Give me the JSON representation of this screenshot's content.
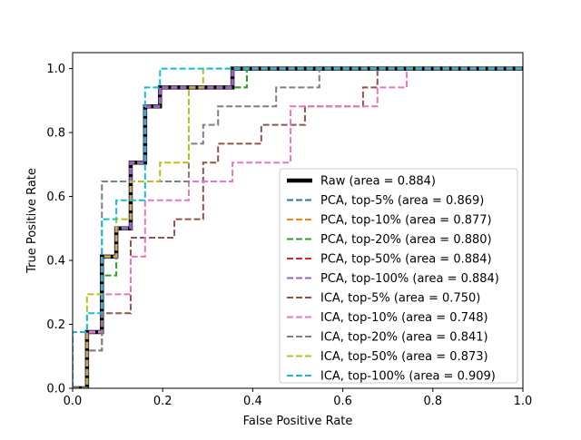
{
  "chart_data": {
    "type": "line",
    "title": "",
    "xlabel": "False Positive Rate",
    "ylabel": "True Positive Rate",
    "xlim": [
      0.0,
      1.0
    ],
    "ylim": [
      0.0,
      1.05
    ],
    "xticks": [
      0.0,
      0.2,
      0.4,
      0.6,
      0.8,
      1.0
    ],
    "xtick_labels": [
      "0.0",
      "0.2",
      "0.4",
      "0.6",
      "0.8",
      "1.0"
    ],
    "yticks": [
      0.0,
      0.2,
      0.4,
      0.6,
      0.8,
      1.0
    ],
    "ytick_labels": [
      "0.0",
      "0.2",
      "0.4",
      "0.6",
      "0.8",
      "1.0"
    ],
    "grid": false,
    "legend_position": "lower-right",
    "series": [
      {
        "name": "Raw (area = 0.884)",
        "color": "#000000",
        "dash": "solid",
        "linewidth": "thick",
        "points": [
          [
            0,
            0
          ],
          [
            0.032,
            0
          ],
          [
            0.032,
            0.176
          ],
          [
            0.065,
            0.176
          ],
          [
            0.065,
            0.412
          ],
          [
            0.097,
            0.412
          ],
          [
            0.097,
            0.5
          ],
          [
            0.129,
            0.5
          ],
          [
            0.129,
            0.706
          ],
          [
            0.161,
            0.706
          ],
          [
            0.161,
            0.882
          ],
          [
            0.194,
            0.882
          ],
          [
            0.194,
            0.941
          ],
          [
            0.355,
            0.941
          ],
          [
            0.355,
            1.0
          ],
          [
            1.0,
            1.0
          ]
        ]
      },
      {
        "name": "PCA, top-5% (area = 0.869)",
        "color": "#1f77b4",
        "dash": "dashed",
        "points": [
          [
            0,
            0
          ],
          [
            0.032,
            0
          ],
          [
            0.032,
            0.176
          ],
          [
            0.065,
            0.176
          ],
          [
            0.065,
            0.412
          ],
          [
            0.097,
            0.412
          ],
          [
            0.097,
            0.5
          ],
          [
            0.129,
            0.5
          ],
          [
            0.129,
            0.706
          ],
          [
            0.161,
            0.706
          ],
          [
            0.161,
            0.882
          ],
          [
            0.194,
            0.882
          ],
          [
            0.194,
            0.941
          ],
          [
            0.387,
            0.941
          ],
          [
            0.387,
            1.0
          ],
          [
            1.0,
            1.0
          ]
        ]
      },
      {
        "name": "PCA, top-10% (area = 0.877)",
        "color": "#ff7f0e",
        "dash": "dashed",
        "points": [
          [
            0,
            0
          ],
          [
            0.032,
            0
          ],
          [
            0.032,
            0.176
          ],
          [
            0.065,
            0.176
          ],
          [
            0.065,
            0.412
          ],
          [
            0.097,
            0.412
          ],
          [
            0.097,
            0.5
          ],
          [
            0.129,
            0.5
          ],
          [
            0.129,
            0.706
          ],
          [
            0.161,
            0.706
          ],
          [
            0.161,
            0.882
          ],
          [
            0.194,
            0.882
          ],
          [
            0.194,
            0.941
          ],
          [
            0.387,
            0.941
          ],
          [
            0.387,
            1.0
          ],
          [
            1.0,
            1.0
          ]
        ]
      },
      {
        "name": "PCA, top-20% (area = 0.880)",
        "color": "#2ca02c",
        "dash": "dashed",
        "points": [
          [
            0,
            0
          ],
          [
            0.032,
            0
          ],
          [
            0.032,
            0.176
          ],
          [
            0.065,
            0.176
          ],
          [
            0.065,
            0.353
          ],
          [
            0.097,
            0.353
          ],
          [
            0.097,
            0.5
          ],
          [
            0.129,
            0.5
          ],
          [
            0.129,
            0.706
          ],
          [
            0.161,
            0.706
          ],
          [
            0.161,
            0.882
          ],
          [
            0.194,
            0.882
          ],
          [
            0.194,
            0.941
          ],
          [
            0.387,
            0.941
          ],
          [
            0.387,
            1.0
          ],
          [
            1.0,
            1.0
          ]
        ]
      },
      {
        "name": "PCA, top-50% (area = 0.884)",
        "color": "#d62728",
        "dash": "dashed",
        "points": [
          [
            0,
            0
          ],
          [
            0.032,
            0
          ],
          [
            0.032,
            0.176
          ],
          [
            0.065,
            0.176
          ],
          [
            0.065,
            0.412
          ],
          [
            0.097,
            0.412
          ],
          [
            0.097,
            0.5
          ],
          [
            0.129,
            0.5
          ],
          [
            0.129,
            0.706
          ],
          [
            0.161,
            0.706
          ],
          [
            0.161,
            0.882
          ],
          [
            0.194,
            0.882
          ],
          [
            0.194,
            0.941
          ],
          [
            0.355,
            0.941
          ],
          [
            0.355,
            1.0
          ],
          [
            1.0,
            1.0
          ]
        ]
      },
      {
        "name": "PCA, top-100% (area = 0.884)",
        "color": "#9467bd",
        "dash": "dashed",
        "linewidth": "wide",
        "points": [
          [
            0,
            0
          ],
          [
            0.032,
            0
          ],
          [
            0.032,
            0.176
          ],
          [
            0.065,
            0.176
          ],
          [
            0.065,
            0.412
          ],
          [
            0.097,
            0.412
          ],
          [
            0.097,
            0.5
          ],
          [
            0.129,
            0.5
          ],
          [
            0.129,
            0.706
          ],
          [
            0.161,
            0.706
          ],
          [
            0.161,
            0.882
          ],
          [
            0.194,
            0.882
          ],
          [
            0.194,
            0.941
          ],
          [
            0.355,
            0.941
          ],
          [
            0.355,
            1.0
          ],
          [
            1.0,
            1.0
          ]
        ]
      },
      {
        "name": "ICA, top-5% (area = 0.750)",
        "color": "#8c564b",
        "dash": "dashed",
        "points": [
          [
            0,
            0
          ],
          [
            0.032,
            0
          ],
          [
            0.032,
            0.118
          ],
          [
            0.065,
            0.118
          ],
          [
            0.065,
            0.235
          ],
          [
            0.129,
            0.235
          ],
          [
            0.129,
            0.471
          ],
          [
            0.226,
            0.471
          ],
          [
            0.226,
            0.529
          ],
          [
            0.29,
            0.529
          ],
          [
            0.29,
            0.706
          ],
          [
            0.323,
            0.706
          ],
          [
            0.323,
            0.765
          ],
          [
            0.419,
            0.765
          ],
          [
            0.419,
            0.824
          ],
          [
            0.516,
            0.824
          ],
          [
            0.516,
            0.882
          ],
          [
            0.645,
            0.882
          ],
          [
            0.645,
            0.941
          ],
          [
            0.677,
            0.941
          ],
          [
            0.677,
            1.0
          ],
          [
            1.0,
            1.0
          ]
        ]
      },
      {
        "name": "ICA, top-10% (area = 0.748)",
        "color": "#e377c2",
        "dash": "dashed",
        "points": [
          [
            0,
            0
          ],
          [
            0.032,
            0
          ],
          [
            0.032,
            0.176
          ],
          [
            0.065,
            0.176
          ],
          [
            0.065,
            0.294
          ],
          [
            0.129,
            0.294
          ],
          [
            0.129,
            0.412
          ],
          [
            0.161,
            0.412
          ],
          [
            0.161,
            0.588
          ],
          [
            0.258,
            0.588
          ],
          [
            0.258,
            0.647
          ],
          [
            0.355,
            0.647
          ],
          [
            0.355,
            0.706
          ],
          [
            0.484,
            0.706
          ],
          [
            0.484,
            0.882
          ],
          [
            0.677,
            0.882
          ],
          [
            0.677,
            0.941
          ],
          [
            0.742,
            0.941
          ],
          [
            0.742,
            1.0
          ],
          [
            1.0,
            1.0
          ]
        ]
      },
      {
        "name": "ICA, top-20% (area = 0.841)",
        "color": "#7f7f7f",
        "dash": "dashed",
        "points": [
          [
            0,
            0
          ],
          [
            0.032,
            0
          ],
          [
            0.032,
            0.118
          ],
          [
            0.065,
            0.118
          ],
          [
            0.065,
            0.647
          ],
          [
            0.258,
            0.647
          ],
          [
            0.258,
            0.765
          ],
          [
            0.29,
            0.765
          ],
          [
            0.29,
            0.824
          ],
          [
            0.323,
            0.824
          ],
          [
            0.323,
            0.882
          ],
          [
            0.452,
            0.882
          ],
          [
            0.452,
            0.941
          ],
          [
            0.548,
            0.941
          ],
          [
            0.548,
            1.0
          ],
          [
            1.0,
            1.0
          ]
        ]
      },
      {
        "name": "ICA, top-50% (area = 0.873)",
        "color": "#bcbd22",
        "dash": "dashed",
        "points": [
          [
            0,
            0
          ],
          [
            0.032,
            0
          ],
          [
            0.032,
            0.294
          ],
          [
            0.065,
            0.294
          ],
          [
            0.065,
            0.412
          ],
          [
            0.097,
            0.412
          ],
          [
            0.097,
            0.529
          ],
          [
            0.129,
            0.529
          ],
          [
            0.129,
            0.647
          ],
          [
            0.194,
            0.647
          ],
          [
            0.194,
            0.706
          ],
          [
            0.258,
            0.706
          ],
          [
            0.258,
            0.941
          ],
          [
            0.29,
            0.941
          ],
          [
            0.29,
            1.0
          ],
          [
            1.0,
            1.0
          ]
        ]
      },
      {
        "name": "ICA, top-100% (area = 0.909)",
        "color": "#17becf",
        "dash": "dashed",
        "points": [
          [
            0,
            0
          ],
          [
            0,
            0.176
          ],
          [
            0.032,
            0.176
          ],
          [
            0.032,
            0.235
          ],
          [
            0.065,
            0.235
          ],
          [
            0.065,
            0.529
          ],
          [
            0.097,
            0.529
          ],
          [
            0.097,
            0.588
          ],
          [
            0.161,
            0.588
          ],
          [
            0.161,
            0.941
          ],
          [
            0.194,
            0.941
          ],
          [
            0.194,
            1.0
          ],
          [
            1.0,
            1.0
          ]
        ]
      }
    ]
  }
}
